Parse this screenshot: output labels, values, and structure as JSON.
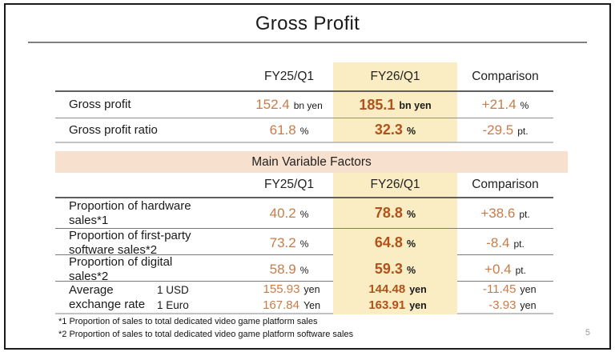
{
  "title": "Gross Profit",
  "page_number": "5",
  "section_header": "Main Variable Factors",
  "columns": {
    "fy25": "FY25/Q1",
    "fy26": "FY26/Q1",
    "comparison": "Comparison"
  },
  "table1": {
    "rows": [
      {
        "label": "Gross profit",
        "fy25": {
          "value": "152.4",
          "unit": "bn yen"
        },
        "fy26": {
          "value": "185.1",
          "unit": "bn yen"
        },
        "comparison": {
          "value": "+21.4",
          "unit": "%"
        }
      },
      {
        "label": "Gross profit ratio",
        "fy25": {
          "value": "61.8",
          "unit": "%"
        },
        "fy26": {
          "value": "32.3",
          "unit": "%"
        },
        "comparison": {
          "value": "-29.5",
          "unit": "pt."
        }
      }
    ]
  },
  "table2": {
    "rows": [
      {
        "label": "Proportion of hardware sales*1",
        "fy25": {
          "value": "40.2",
          "unit": "%"
        },
        "fy26": {
          "value": "78.8",
          "unit": "%"
        },
        "comparison": {
          "value": "+38.6",
          "unit": "pt."
        }
      },
      {
        "label": "Proportion of first-party software sales*2",
        "fy25": {
          "value": "73.2",
          "unit": "%"
        },
        "fy26": {
          "value": "64.8",
          "unit": "%"
        },
        "comparison": {
          "value": "-8.4",
          "unit": "pt."
        }
      },
      {
        "label": "Proportion of digital sales*2",
        "fy25": {
          "value": "58.9",
          "unit": "%"
        },
        "fy26": {
          "value": "59.3",
          "unit": "%"
        },
        "comparison": {
          "value": "+0.4",
          "unit": "pt."
        }
      }
    ],
    "exchange_rate": {
      "label": "Average exchange rate",
      "currencies": [
        "1 USD",
        "1 Euro"
      ],
      "fy25": [
        {
          "value": "155.93",
          "unit": "yen"
        },
        {
          "value": "167.84",
          "unit": "Yen"
        }
      ],
      "fy26": [
        {
          "value": "144.48",
          "unit": "yen"
        },
        {
          "value": "163.91",
          "unit": "yen"
        }
      ],
      "comparison": [
        {
          "value": "-11.45",
          "unit": "yen"
        },
        {
          "value": "-3.93",
          "unit": "yen"
        }
      ]
    }
  },
  "footnotes": [
    "*1 Proportion of sales to total dedicated video game platform sales",
    "*2 Proportion of sales to total dedicated video game platform software sales"
  ],
  "colors": {
    "highlight_column": "#FAEDC4",
    "section_bar": "#F8E0CE",
    "value_orange": "#C87C4A",
    "value_orange_bold": "#B0521A"
  }
}
